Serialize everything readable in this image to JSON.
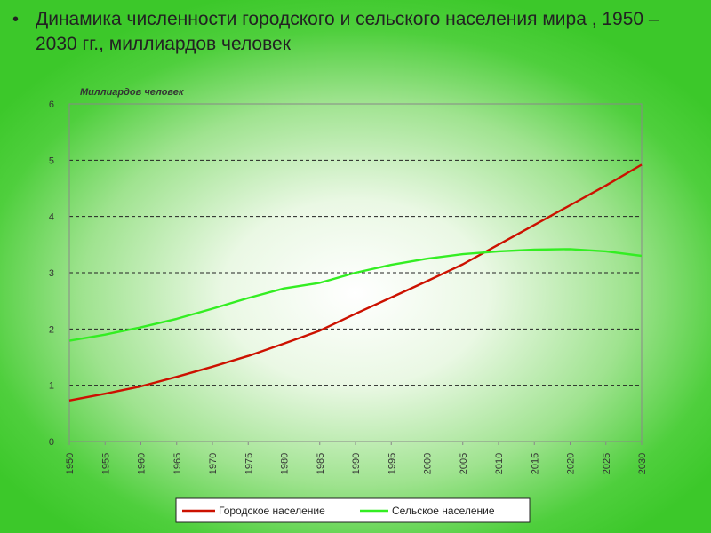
{
  "slide": {
    "bullet": "•",
    "title": "Динамика численности городского и сельского населения мира , 1950 – 2030 гг., миллиардов человек"
  },
  "chart_data": {
    "type": "line",
    "title": "Динамика численности городского и сельского населения мира , 1950 – 2030 гг., миллиардов человек",
    "ylabel": "Миллиардов человек",
    "xlabel": "",
    "x": [
      1950,
      1955,
      1960,
      1965,
      1970,
      1975,
      1980,
      1985,
      1990,
      1995,
      2000,
      2005,
      2010,
      2015,
      2020,
      2025,
      2030
    ],
    "xticks": [
      "1950",
      "1955",
      "1960",
      "1965",
      "1970",
      "1975",
      "1980",
      "1985",
      "1990",
      "1995",
      "2000",
      "2005",
      "2010",
      "2015",
      "2020",
      "2025",
      "2030"
    ],
    "yticks": [
      "0",
      "1",
      "2",
      "3",
      "4",
      "5",
      "6"
    ],
    "xlim": [
      1950,
      2030
    ],
    "ylim": [
      0,
      6
    ],
    "grid": "horizontal dashed",
    "legend_position": "bottom",
    "series": [
      {
        "name": "Городское население",
        "color": "#cc1100",
        "values": [
          0.73,
          0.85,
          0.98,
          1.15,
          1.33,
          1.52,
          1.74,
          1.97,
          2.27,
          2.56,
          2.85,
          3.15,
          3.5,
          3.85,
          4.2,
          4.55,
          4.92
        ]
      },
      {
        "name": "Сельское население",
        "color": "#33ee22",
        "values": [
          1.79,
          1.9,
          2.03,
          2.18,
          2.36,
          2.55,
          2.72,
          2.82,
          3.0,
          3.14,
          3.25,
          3.33,
          3.38,
          3.41,
          3.42,
          3.38,
          3.3
        ]
      }
    ]
  }
}
